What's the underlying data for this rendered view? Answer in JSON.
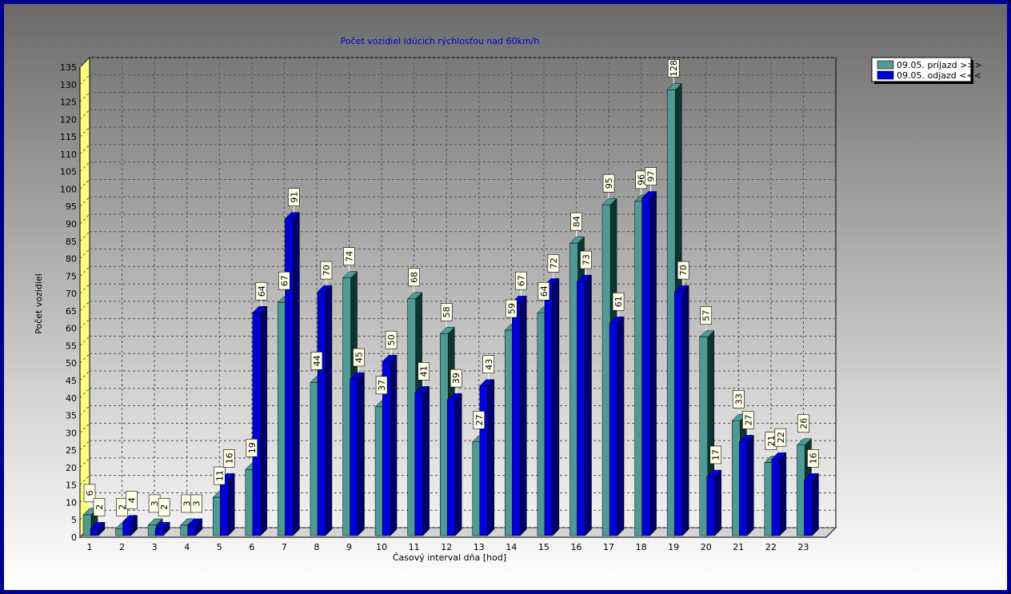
{
  "chart_data": {
    "type": "bar",
    "title": "Počet vozidiel idúcich rýchlosťou nad 60km/h",
    "xlabel": "Časový interval dňa [hod]",
    "ylabel": "Počet vozidiel",
    "ylim": [
      0,
      135
    ],
    "ytick_step": 5,
    "grid": true,
    "legend_position": "top-right",
    "categories": [
      "1",
      "2",
      "3",
      "4",
      "5",
      "6",
      "7",
      "8",
      "9",
      "10",
      "11",
      "12",
      "13",
      "14",
      "15",
      "16",
      "17",
      "18",
      "19",
      "20",
      "21",
      "22",
      "23"
    ],
    "series": [
      {
        "name": "09.05.  príjazd >>>",
        "color": "#4f9a94",
        "dark": "#0a3530",
        "values": [
          6,
          2,
          3,
          3,
          11,
          19,
          67,
          44,
          74,
          37,
          68,
          58,
          27,
          59,
          64,
          84,
          95,
          96,
          128,
          57,
          33,
          21,
          26
        ]
      },
      {
        "name": "09.05.  odjazd <<<",
        "color": "#0000d8",
        "dark": "#00006a",
        "values": [
          2,
          4,
          2,
          3,
          16,
          64,
          91,
          70,
          45,
          50,
          41,
          39,
          43,
          67,
          72,
          73,
          61,
          97,
          70,
          17,
          27,
          22,
          16
        ]
      }
    ]
  }
}
